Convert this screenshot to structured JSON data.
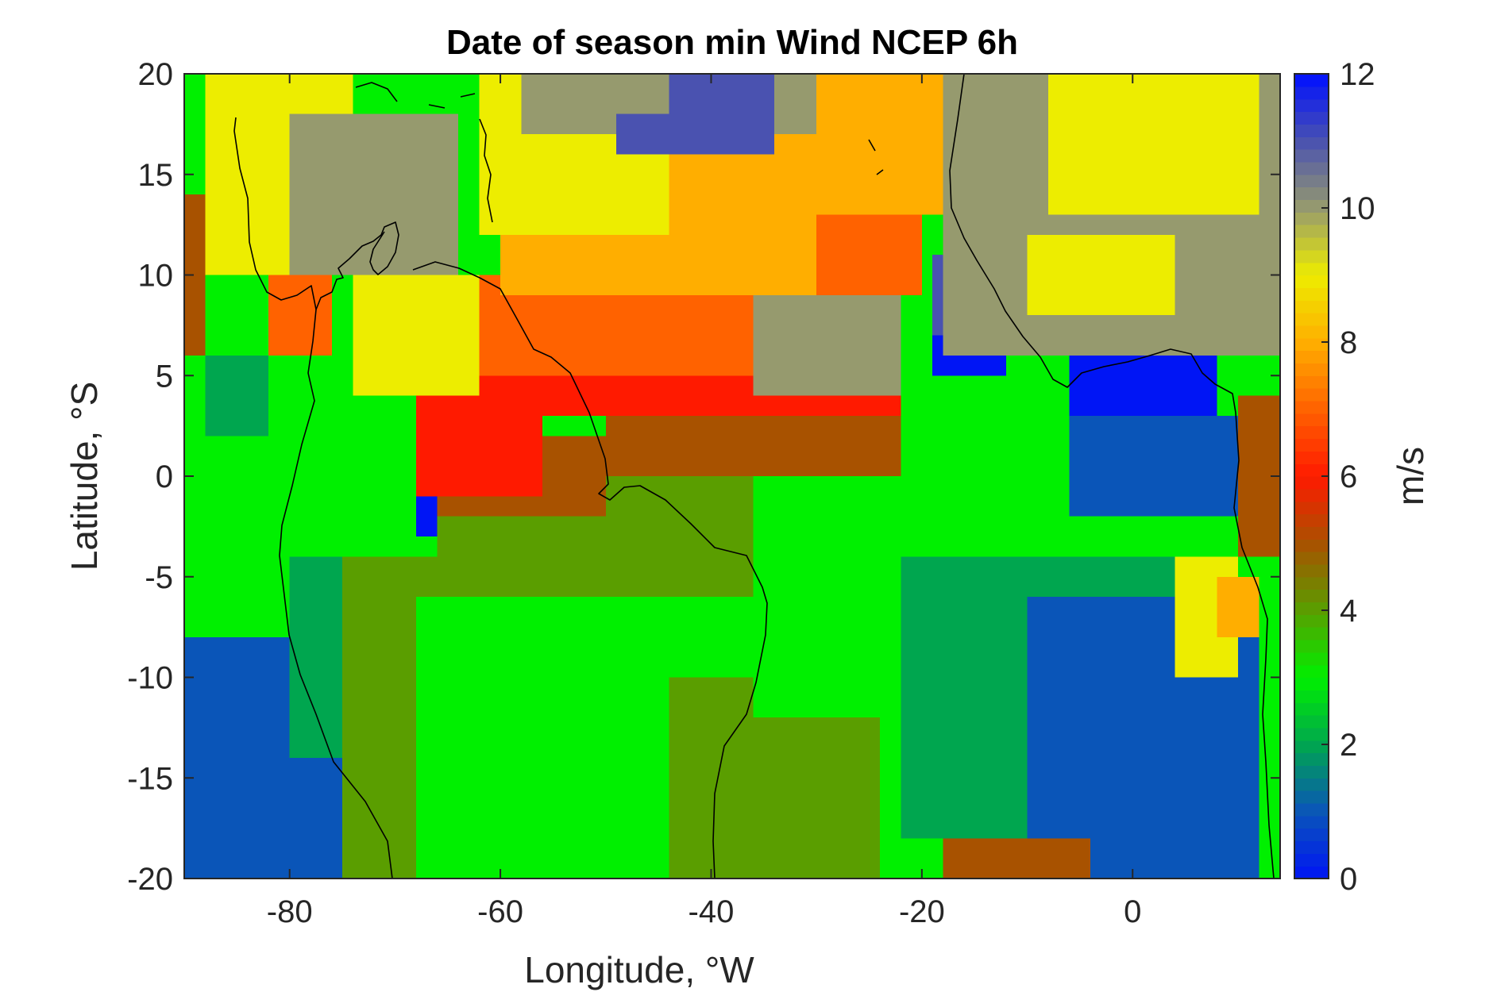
{
  "title": "Date of season min Wind NCEP 6h",
  "xlabel": "Longitude, °W",
  "ylabel": "Latitude, °S",
  "colorbar": {
    "label": "m/s",
    "range": [
      0,
      12
    ],
    "ticks": [
      "0",
      "2",
      "4",
      "6",
      "8",
      "10",
      "12"
    ],
    "stops": [
      {
        "value": 0,
        "color": "#0015f5"
      },
      {
        "value": 1,
        "color": "#0a55b8"
      },
      {
        "value": 2,
        "color": "#00a64f"
      },
      {
        "value": 3,
        "color": "#00f000"
      },
      {
        "value": 4,
        "color": "#5a9e00"
      },
      {
        "value": 5,
        "color": "#a85200"
      },
      {
        "value": 6,
        "color": "#ff1a00"
      },
      {
        "value": 7,
        "color": "#ff6200"
      },
      {
        "value": 8,
        "color": "#ffae00"
      },
      {
        "value": 9,
        "color": "#eded00"
      },
      {
        "value": 10,
        "color": "#969a6e"
      },
      {
        "value": 11,
        "color": "#4a52b0"
      },
      {
        "value": 12,
        "color": "#0010ff"
      }
    ]
  },
  "chart_data": {
    "type": "heatmap",
    "title": "Date of season min Wind NCEP 6h",
    "xlabel": "Longitude, °W",
    "ylabel": "Latitude, °S",
    "xlim": [
      -90,
      14
    ],
    "ylim": [
      -20,
      20
    ],
    "xticks": [
      "-80",
      "-60",
      "-40",
      "-20",
      "0"
    ],
    "xtick_values": [
      -80,
      -60,
      -40,
      -20,
      0
    ],
    "yticks": [
      "-20",
      "-15",
      "-10",
      "-5",
      "0",
      "5",
      "10",
      "15",
      "20"
    ],
    "ytick_values": [
      -20,
      -15,
      -10,
      -5,
      0,
      5,
      10,
      15,
      20
    ],
    "colorbar_label": "m/s",
    "colorbar_range": [
      0,
      12
    ],
    "regions": [
      {
        "lon": [
          -90,
          14
        ],
        "lat": [
          -20,
          20
        ],
        "value": 3
      },
      {
        "lon": [
          -90,
          -74
        ],
        "lat": [
          -20,
          -8
        ],
        "value": 1
      },
      {
        "lon": [
          -80,
          -72
        ],
        "lat": [
          -14,
          -4
        ],
        "value": 2
      },
      {
        "lon": [
          -75,
          -52
        ],
        "lat": [
          -20,
          -4
        ],
        "value": 4
      },
      {
        "lon": [
          -68,
          -50
        ],
        "lat": [
          -20,
          -6
        ],
        "value": 3
      },
      {
        "lon": [
          -55,
          -38
        ],
        "lat": [
          -20,
          -6
        ],
        "value": 3
      },
      {
        "lon": [
          -66,
          -36
        ],
        "lat": [
          -6,
          2
        ],
        "value": 4
      },
      {
        "lon": [
          -44,
          -24
        ],
        "lat": [
          -20,
          -10
        ],
        "value": 4
      },
      {
        "lon": [
          -36,
          -20
        ],
        "lat": [
          -12,
          2
        ],
        "value": 3
      },
      {
        "lon": [
          -22,
          4
        ],
        "lat": [
          -18,
          -4
        ],
        "value": 2
      },
      {
        "lon": [
          -10,
          12
        ],
        "lat": [
          -20,
          -6
        ],
        "value": 1
      },
      {
        "lon": [
          -18,
          -4
        ],
        "lat": [
          -20,
          -18
        ],
        "value": 5
      },
      {
        "lon": [
          -6,
          12
        ],
        "lat": [
          -2,
          3
        ],
        "value": 1
      },
      {
        "lon": [
          -6,
          8
        ],
        "lat": [
          3,
          6
        ],
        "value": 0
      },
      {
        "lon": [
          -19,
          -12
        ],
        "lat": [
          5,
          7
        ],
        "value": 0
      },
      {
        "lon": [
          -19,
          -8
        ],
        "lat": [
          7,
          11
        ],
        "value": 11
      },
      {
        "lon": [
          -66,
          -50
        ],
        "lat": [
          -2,
          2
        ],
        "value": 5
      },
      {
        "lon": [
          -50,
          -22
        ],
        "lat": [
          0,
          3
        ],
        "value": 5
      },
      {
        "lon": [
          -68,
          -56
        ],
        "lat": [
          -1,
          6
        ],
        "value": 6
      },
      {
        "lon": [
          -56,
          -22
        ],
        "lat": [
          3,
          6
        ],
        "value": 6
      },
      {
        "lon": [
          -62,
          -30
        ],
        "lat": [
          5,
          10
        ],
        "value": 7
      },
      {
        "lon": [
          -34,
          -20
        ],
        "lat": [
          9,
          15
        ],
        "value": 7
      },
      {
        "lon": [
          -60,
          -30
        ],
        "lat": [
          9,
          13
        ],
        "value": 8
      },
      {
        "lon": [
          -44,
          -18
        ],
        "lat": [
          13,
          20
        ],
        "value": 8
      },
      {
        "lon": [
          -74,
          -62
        ],
        "lat": [
          4,
          10
        ],
        "value": 9
      },
      {
        "lon": [
          -88,
          -74
        ],
        "lat": [
          10,
          20
        ],
        "value": 9
      },
      {
        "lon": [
          -62,
          -44
        ],
        "lat": [
          12,
          20
        ],
        "value": 9
      },
      {
        "lon": [
          -80,
          -64
        ],
        "lat": [
          10,
          18
        ],
        "value": 10
      },
      {
        "lon": [
          -58,
          -30
        ],
        "lat": [
          17,
          20
        ],
        "value": 10
      },
      {
        "lon": [
          -36,
          -22
        ],
        "lat": [
          4,
          9
        ],
        "value": 10
      },
      {
        "lon": [
          -18,
          14
        ],
        "lat": [
          6,
          20
        ],
        "value": 10
      },
      {
        "lon": [
          -8,
          12
        ],
        "lat": [
          13,
          20
        ],
        "value": 9
      },
      {
        "lon": [
          -10,
          4
        ],
        "lat": [
          8,
          12
        ],
        "value": 9
      },
      {
        "lon": [
          -49,
          -44
        ],
        "lat": [
          16,
          18
        ],
        "value": 11
      },
      {
        "lon": [
          -44,
          -34
        ],
        "lat": [
          16,
          20
        ],
        "value": 11
      },
      {
        "lon": [
          4,
          10
        ],
        "lat": [
          -10,
          -4
        ],
        "value": 9
      },
      {
        "lon": [
          8,
          12
        ],
        "lat": [
          -8,
          -5
        ],
        "value": 8
      },
      {
        "lon": [
          10,
          14
        ],
        "lat": [
          -4,
          4
        ],
        "value": 5
      },
      {
        "lon": [
          -90,
          -76
        ],
        "lat": [
          -4,
          8
        ],
        "value": 3
      },
      {
        "lon": [
          -88,
          -82
        ],
        "lat": [
          2,
          6
        ],
        "value": 2
      },
      {
        "lon": [
          -90,
          -88
        ],
        "lat": [
          6,
          14
        ],
        "value": 5
      },
      {
        "lon": [
          -82,
          -76
        ],
        "lat": [
          6,
          10
        ],
        "value": 7
      },
      {
        "lon": [
          -68,
          -66
        ],
        "lat": [
          -3,
          -1
        ],
        "value": 0
      }
    ]
  }
}
